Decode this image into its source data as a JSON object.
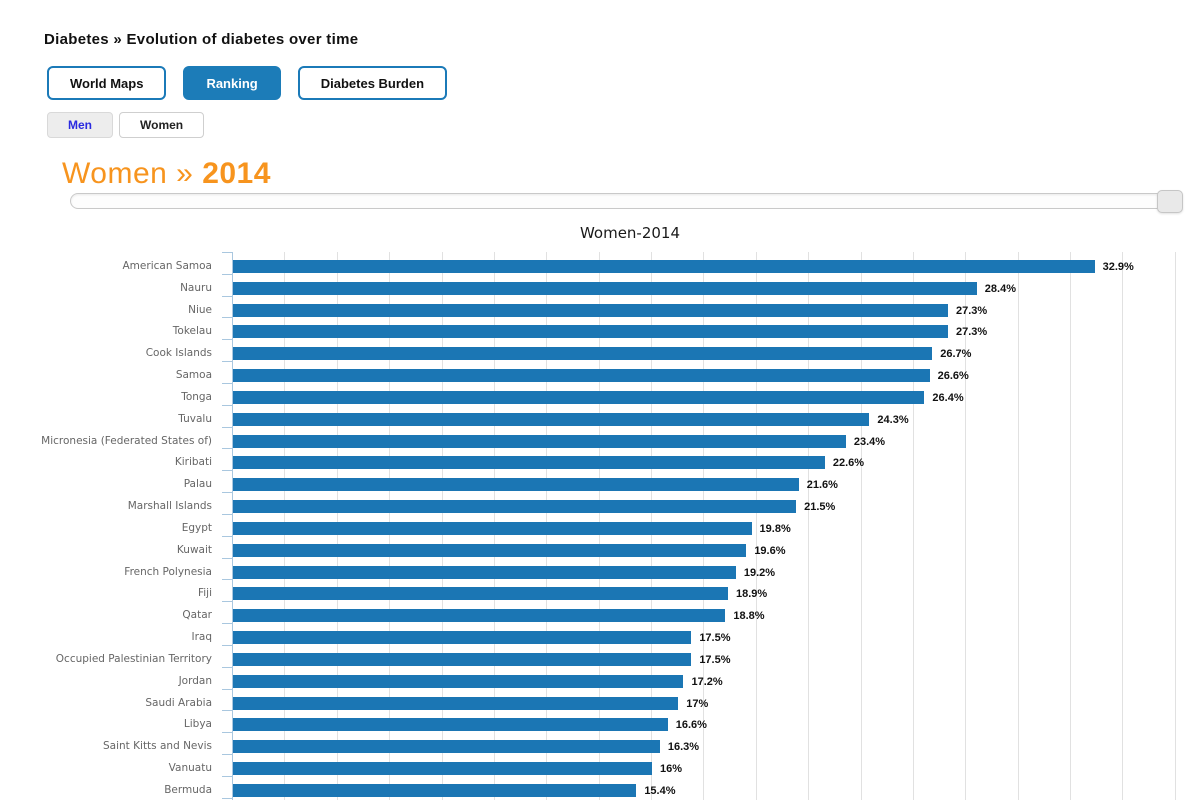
{
  "page": {
    "title": "Diabetes » Evolution of diabetes over time"
  },
  "tabs": {
    "items": [
      {
        "label": "World Maps",
        "active": false
      },
      {
        "label": "Ranking",
        "active": true
      },
      {
        "label": "Diabetes Burden",
        "active": false
      }
    ]
  },
  "gender_toggle": {
    "items": [
      {
        "label": "Men",
        "highlighted": true
      },
      {
        "label": "Women",
        "highlighted": false
      }
    ]
  },
  "heading": {
    "prefix": "Women »",
    "year": "2014"
  },
  "colors": {
    "accent_blue": "#1c7cb8",
    "bar_blue": "#1b76b4",
    "heading_orange": "#f7941e",
    "category_label_gray": "#666666",
    "gridline_gray": "#e1e1e1",
    "axis_tick_blue": "#a9c7df",
    "men_link_blue": "#2a2ae0"
  },
  "chart_data": {
    "type": "bar",
    "orientation": "horizontal",
    "title": "Women-2014",
    "xlabel": "",
    "ylabel": "",
    "xlim": [
      0,
      36
    ],
    "gridline_step_percent": 2,
    "grid": true,
    "legend": false,
    "categories": [
      "American Samoa",
      "Nauru",
      "Niue",
      "Tokelau",
      "Cook Islands",
      "Samoa",
      "Tonga",
      "Tuvalu",
      "Micronesia (Federated States of)",
      "Kiribati",
      "Palau",
      "Marshall Islands",
      "Egypt",
      "Kuwait",
      "French Polynesia",
      "Fiji",
      "Qatar",
      "Iraq",
      "Occupied Palestinian Territory",
      "Jordan",
      "Saudi Arabia",
      "Libya",
      "Saint Kitts and Nevis",
      "Vanuatu",
      "Bermuda"
    ],
    "values": [
      32.9,
      28.4,
      27.3,
      27.3,
      26.7,
      26.6,
      26.4,
      24.3,
      23.4,
      22.6,
      21.6,
      21.5,
      19.8,
      19.6,
      19.2,
      18.9,
      18.8,
      17.5,
      17.5,
      17.2,
      17,
      16.6,
      16.3,
      16,
      15.4
    ],
    "value_labels": [
      "32.9%",
      "28.4%",
      "27.3%",
      "27.3%",
      "26.7%",
      "26.6%",
      "26.4%",
      "24.3%",
      "23.4%",
      "22.6%",
      "21.6%",
      "21.5%",
      "19.8%",
      "19.6%",
      "19.2%",
      "18.9%",
      "18.8%",
      "17.5%",
      "17.5%",
      "17.2%",
      "17%",
      "16.6%",
      "16.3%",
      "16%",
      "15.4%"
    ]
  }
}
